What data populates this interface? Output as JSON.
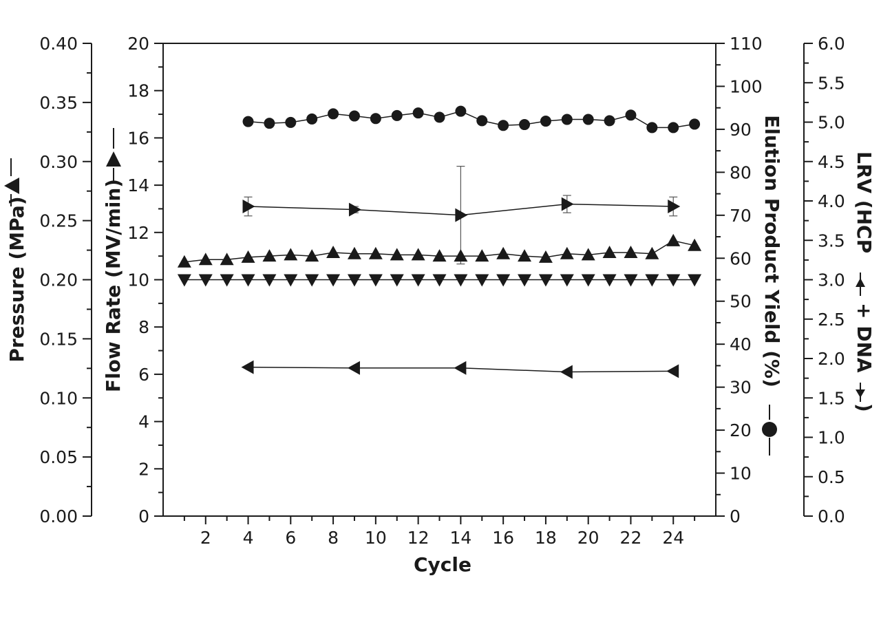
{
  "chart_data": {
    "type": "line",
    "xlabel": "Cycle",
    "xlim": [
      0,
      26
    ],
    "xticks": [
      "2",
      "4",
      "6",
      "8",
      "10",
      "12",
      "14",
      "16",
      "18",
      "20",
      "22",
      "24"
    ],
    "axes": {
      "pressure": {
        "label": "Pressure (MPa)",
        "ylim": [
          0,
          0.4
        ],
        "ticks": [
          "0.00",
          "0.05",
          "0.10",
          "0.15",
          "0.20",
          "0.25",
          "0.30",
          "0.35",
          "0.40"
        ]
      },
      "flow": {
        "label": "Flow Rate (MV/min)",
        "ylim": [
          0,
          20
        ],
        "ticks": [
          "0",
          "2",
          "4",
          "6",
          "8",
          "10",
          "12",
          "14",
          "16",
          "18",
          "20"
        ]
      },
      "yield": {
        "label": "Elution Product Yield (%)",
        "ylim": [
          0,
          110
        ],
        "ticks": [
          "0",
          "10",
          "20",
          "30",
          "40",
          "50",
          "60",
          "70",
          "80",
          "90",
          "100",
          "110"
        ]
      },
      "lrv": {
        "label": "LRV (HCP",
        "label_mid": "+ DNA",
        "label_end": ")",
        "ylim": [
          0,
          6
        ],
        "ticks": [
          "0.0",
          "0.5",
          "1.0",
          "1.5",
          "2.0",
          "2.5",
          "3.0",
          "3.5",
          "4.0",
          "4.5",
          "5.0",
          "5.5",
          "6.0"
        ]
      }
    },
    "series": [
      {
        "name": "Elution Product Yield",
        "axis": "yield",
        "marker": "circle",
        "x": [
          4,
          5,
          6,
          7,
          8,
          9,
          10,
          11,
          12,
          13,
          14,
          15,
          16,
          17,
          18,
          19,
          20,
          21,
          22,
          23,
          24,
          25
        ],
        "values": [
          91.8,
          91.4,
          91.6,
          92.4,
          93.6,
          93.1,
          92.5,
          93.2,
          93.8,
          92.8,
          94.2,
          92.0,
          90.9,
          91.1,
          91.9,
          92.3,
          92.3,
          92.0,
          93.3,
          90.4,
          90.4,
          91.2
        ]
      },
      {
        "name": "HCP LRV",
        "axis": "lrv",
        "marker": "triangle-right",
        "x": [
          4,
          9,
          14,
          19,
          24
        ],
        "values": [
          3.93,
          3.89,
          3.82,
          3.96,
          3.93
        ],
        "error": [
          0.12,
          0.04,
          0.62,
          0.11,
          0.12
        ]
      },
      {
        "name": "Pressure",
        "axis": "pressure",
        "marker": "triangle-up",
        "x": [
          1,
          2,
          3,
          4,
          5,
          6,
          7,
          8,
          9,
          10,
          11,
          12,
          13,
          14,
          15,
          16,
          17,
          18,
          19,
          20,
          21,
          22,
          23,
          24,
          25
        ],
        "values": [
          0.215,
          0.217,
          0.217,
          0.219,
          0.22,
          0.221,
          0.22,
          0.223,
          0.222,
          0.222,
          0.221,
          0.221,
          0.22,
          0.22,
          0.22,
          0.222,
          0.22,
          0.219,
          0.222,
          0.221,
          0.223,
          0.223,
          0.222,
          0.233,
          0.229
        ]
      },
      {
        "name": "Flow Rate",
        "axis": "flow",
        "marker": "triangle-down",
        "x": [
          1,
          2,
          3,
          4,
          5,
          6,
          7,
          8,
          9,
          10,
          11,
          12,
          13,
          14,
          15,
          16,
          17,
          18,
          19,
          20,
          21,
          22,
          23,
          24,
          25
        ],
        "values": [
          10,
          10,
          10,
          10,
          10,
          10,
          10,
          10,
          10,
          10,
          10,
          10,
          10,
          10,
          10,
          10,
          10,
          10,
          10,
          10,
          10,
          10,
          10,
          10,
          10
        ]
      },
      {
        "name": "DNA LRV",
        "axis": "lrv",
        "marker": "triangle-left",
        "x": [
          4,
          9,
          14,
          19,
          24
        ],
        "values": [
          1.89,
          1.88,
          1.88,
          1.83,
          1.84
        ]
      }
    ]
  }
}
